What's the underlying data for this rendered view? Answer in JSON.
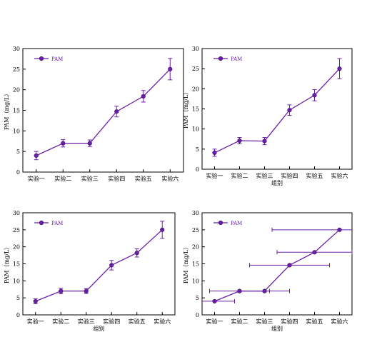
{
  "series_color": "#6a1fa8",
  "chart_data": [
    {
      "type": "line",
      "categories": [
        "实验一",
        "实验二",
        "实验三",
        "实验四",
        "实验五",
        "实验六"
      ],
      "series": [
        {
          "name": "PAM",
          "values": [
            4,
            7,
            7,
            14.7,
            18.4,
            25
          ]
        }
      ],
      "y_error": [
        1,
        0.9,
        0.8,
        1.3,
        1.4,
        2.6
      ],
      "x_error": null,
      "ylabel": "PAM（mg/L）",
      "xlabel": "",
      "ylim": [
        0,
        30
      ],
      "yticks": [
        0,
        5,
        10,
        15,
        20,
        25,
        30
      ],
      "grid": false,
      "legend": "top-left"
    },
    {
      "type": "line",
      "categories": [
        "实验一",
        "实验二",
        "实验三",
        "实验四",
        "实验五",
        "实验六"
      ],
      "series": [
        {
          "name": "PAM",
          "values": [
            4.1,
            7.1,
            7,
            14.7,
            18.4,
            25
          ]
        }
      ],
      "y_error": [
        0.9,
        0.8,
        0.9,
        1.3,
        1.4,
        2.5
      ],
      "x_error": null,
      "ylabel": "PAM（mg/L）",
      "xlabel": "组别",
      "ylim": [
        0,
        30
      ],
      "yticks": [
        0,
        5,
        10,
        15,
        20,
        25,
        30
      ],
      "grid": false,
      "legend": "top-left"
    },
    {
      "type": "line",
      "categories": [
        "实验一",
        "实验二",
        "实验三",
        "实验四",
        "实验五",
        "实验六"
      ],
      "series": [
        {
          "name": "PAM",
          "values": [
            4,
            7,
            7,
            14.6,
            18.2,
            25
          ]
        }
      ],
      "y_error": [
        0.7,
        0.8,
        0.7,
        1.4,
        1.2,
        2.5
      ],
      "x_error": null,
      "ylabel": "PAM（mg/L）",
      "xlabel": "组别",
      "ylim": [
        0,
        30
      ],
      "yticks": [
        0,
        5,
        10,
        15,
        20,
        25,
        30
      ],
      "grid": false,
      "legend": "top-left"
    },
    {
      "type": "line",
      "categories": [
        "实验一",
        "实验二",
        "实验三",
        "实验四",
        "实验五",
        "实验六"
      ],
      "series": [
        {
          "name": "PAM",
          "values": [
            4,
            7,
            7,
            14.6,
            18.4,
            25
          ]
        }
      ],
      "y_error": null,
      "x_error": [
        0.8,
        1.2,
        1,
        1.6,
        1.5,
        2.7
      ],
      "ylabel": "PAM（mg/L）",
      "xlabel": "组别",
      "ylim": [
        0,
        30
      ],
      "yticks": [
        0,
        5,
        10,
        15,
        20,
        25,
        30
      ],
      "grid": false,
      "legend": "top-left"
    }
  ]
}
